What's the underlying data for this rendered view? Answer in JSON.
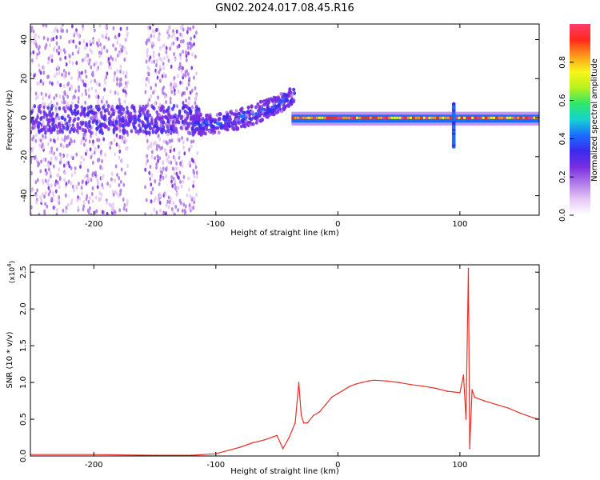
{
  "title": "GN02.2024.017.08.45.R16",
  "colors": {
    "snr_line": "#e8312a",
    "axis": "#000000",
    "colormap": [
      "#ffffff",
      "#e6c8f5",
      "#b07be8",
      "#7a2ee0",
      "#3b2aee",
      "#1a6bff",
      "#14d2d2",
      "#2ee86a",
      "#b9f01e",
      "#f7f51a",
      "#ff9a1a",
      "#ff2a1a",
      "#ff3c6e"
    ]
  },
  "chart_data": [
    {
      "type": "heatmap",
      "xlabel": "Height of straight line (km)",
      "ylabel": "Frequency (Hz)",
      "xlim": [
        -252,
        165
      ],
      "ylim": [
        -50,
        48
      ],
      "xticks": [
        -200,
        -100,
        0,
        100
      ],
      "xtick_labels": [
        "-200",
        "-100",
        "0",
        "100"
      ],
      "yticks": [
        -40,
        -20,
        0,
        20,
        40
      ],
      "ytick_labels": [
        "-40",
        "-20",
        "0",
        "20",
        "40"
      ],
      "colorbar": {
        "label": "Normalized spectral amplitude",
        "range": [
          0.0,
          1.0
        ],
        "ticks": [
          0.0,
          0.2,
          0.4,
          0.6,
          0.8
        ],
        "tick_labels": [
          "0.0",
          "0.2",
          "0.4",
          "0.6",
          "0.8"
        ]
      },
      "features": [
        {
          "name": "noise",
          "x": [
            -252,
            -115
          ],
          "freq_center": 0,
          "freq_spread": 48,
          "amplitude": 0.15
        },
        {
          "name": "rising-trace",
          "x": [
            -120,
            -35
          ],
          "freq_start": -5,
          "freq_end": 12,
          "amplitude": 0.35
        },
        {
          "name": "carrier",
          "x": [
            -38,
            165
          ],
          "freq": 0,
          "amplitude": 0.95
        },
        {
          "name": "spike",
          "x": 95,
          "freq_range": [
            -15,
            7
          ],
          "amplitude": 0.4
        }
      ]
    },
    {
      "type": "line",
      "xlabel": "Height of straight line (km)",
      "ylabel": "SNR (10 * v/v)",
      "y_multiplier": "(x10",
      "y_multiplier_exp": "4",
      "y_multiplier_close": ")",
      "xlim": [
        -252,
        165
      ],
      "ylim": [
        0.0,
        2.6
      ],
      "xticks": [
        -200,
        -100,
        0,
        100
      ],
      "xtick_labels": [
        "-200",
        "-100",
        "0",
        "100"
      ],
      "yticks": [
        0.0,
        0.5,
        1.0,
        1.5,
        2.0,
        2.5
      ],
      "ytick_labels": [
        "0.0",
        "0.5",
        "1.0",
        "1.5",
        "2.0",
        "2.5"
      ],
      "series": [
        {
          "x": [
            -252,
            -200,
            -150,
            -120,
            -100,
            -80,
            -70,
            -60,
            -50,
            -45,
            -40,
            -35,
            -32,
            -30,
            -28,
            -25,
            -20,
            -15,
            -10,
            -5,
            0,
            5,
            10,
            15,
            20,
            25,
            30,
            40,
            50,
            60,
            70,
            80,
            90,
            95,
            100,
            103,
            105,
            107,
            108,
            110,
            112,
            115,
            120,
            130,
            140,
            150,
            160,
            165
          ],
          "values": [
            0.02,
            0.02,
            0.01,
            0.01,
            0.03,
            0.12,
            0.18,
            0.22,
            0.28,
            0.1,
            0.25,
            0.45,
            1.0,
            0.55,
            0.45,
            0.45,
            0.55,
            0.6,
            0.7,
            0.8,
            0.85,
            0.9,
            0.95,
            0.98,
            1.0,
            1.02,
            1.03,
            1.02,
            1.0,
            0.97,
            0.95,
            0.92,
            0.88,
            0.87,
            0.86,
            1.1,
            0.5,
            2.55,
            0.1,
            0.9,
            0.8,
            0.78,
            0.75,
            0.7,
            0.65,
            0.58,
            0.52,
            0.5
          ]
        }
      ]
    }
  ]
}
